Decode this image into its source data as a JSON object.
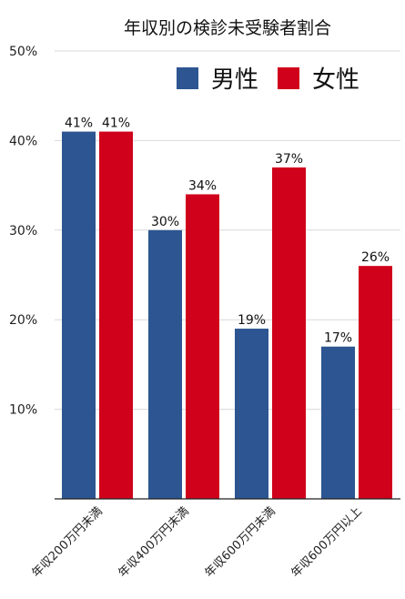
{
  "chart_data": {
    "type": "bar",
    "title": "年収別の検診未受験者割合",
    "categories": [
      "年収200万円未満",
      "年収400万円未満",
      "年収600万円未満",
      "年収600万円以上"
    ],
    "series": [
      {
        "name": "男性",
        "color": "#2c5591",
        "values": [
          41,
          30,
          19,
          17
        ],
        "labels": [
          "41%",
          "30%",
          "19%",
          "17%"
        ]
      },
      {
        "name": "女性",
        "color": "#d0021b",
        "values": [
          41,
          34,
          37,
          26
        ],
        "labels": [
          "41%",
          "34%",
          "37%",
          "26%"
        ]
      }
    ],
    "ylim": [
      0,
      50
    ],
    "yticks": [
      "10%",
      "20%",
      "30%",
      "40%",
      "50%"
    ],
    "grid": true,
    "legend_position": "top-right"
  }
}
